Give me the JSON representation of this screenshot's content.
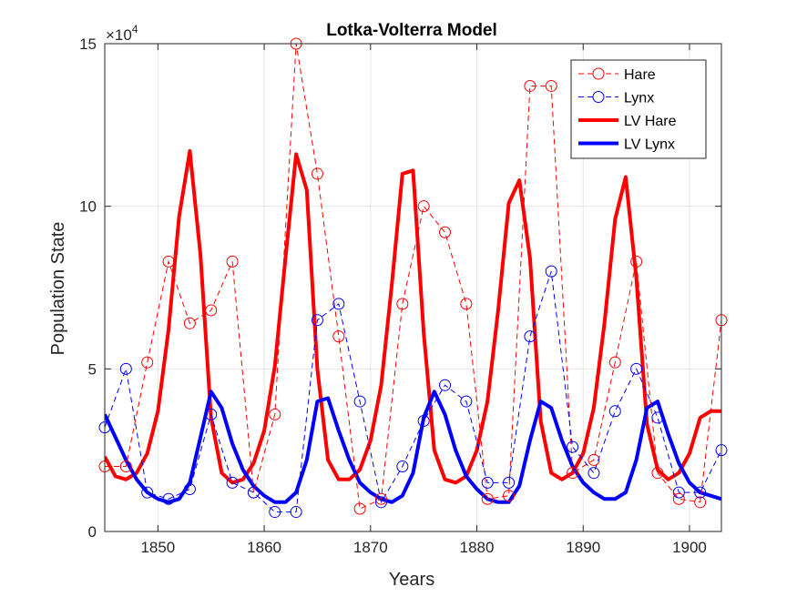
{
  "chart_data": {
    "type": "line",
    "title": "Lotka-Volterra Model",
    "xlabel": "Years",
    "ylabel": "Population State",
    "y_multiplier": "×10^4",
    "xlim": [
      1845,
      1903
    ],
    "ylim": [
      0,
      150000
    ],
    "xticks": [
      1850,
      1860,
      1870,
      1880,
      1890,
      1900
    ],
    "yticks": [
      0,
      50000,
      100000,
      150000
    ],
    "ytick_labels": [
      "0",
      "5",
      "10",
      "15"
    ],
    "grid": true,
    "legend_position": "top-right",
    "series": [
      {
        "name": "Hare",
        "color": "#ff0000",
        "style": "dashed-circle",
        "x": [
          1845,
          1847,
          1849,
          1851,
          1853,
          1855,
          1857,
          1859,
          1861,
          1863,
          1865,
          1867,
          1869,
          1871,
          1873,
          1875,
          1877,
          1879,
          1881,
          1883,
          1885,
          1887,
          1889,
          1891,
          1893,
          1895,
          1897,
          1899,
          1901,
          1903
        ],
        "y": [
          20000,
          20000,
          52000,
          83000,
          64000,
          68000,
          83000,
          12000,
          36000,
          150000,
          110000,
          60000,
          7000,
          10000,
          70000,
          100000,
          92000,
          70000,
          10000,
          11000,
          137000,
          137000,
          18000,
          22000,
          52000,
          83000,
          18000,
          10000,
          9000,
          65000
        ]
      },
      {
        "name": "Lynx",
        "color": "#0000ff",
        "style": "dashed-circle",
        "x": [
          1845,
          1847,
          1849,
          1851,
          1853,
          1855,
          1857,
          1859,
          1861,
          1863,
          1865,
          1867,
          1869,
          1871,
          1873,
          1875,
          1877,
          1879,
          1881,
          1883,
          1885,
          1887,
          1889,
          1891,
          1893,
          1895,
          1897,
          1899,
          1901,
          1903
        ],
        "y": [
          32000,
          50000,
          12000,
          10000,
          13000,
          36000,
          15000,
          12000,
          6000,
          6000,
          65000,
          70000,
          40000,
          9000,
          20000,
          34000,
          45000,
          40000,
          15000,
          15000,
          60000,
          80000,
          26000,
          18000,
          37000,
          50000,
          35000,
          12000,
          12000,
          25000
        ]
      },
      {
        "name": "LV Hare",
        "color": "#ff0000",
        "style": "solid-thick",
        "x": [
          1845,
          1846,
          1847,
          1848,
          1849,
          1850,
          1851,
          1852,
          1853,
          1854,
          1855,
          1856,
          1857,
          1858,
          1859,
          1860,
          1861,
          1862,
          1863,
          1864,
          1865,
          1866,
          1867,
          1868,
          1869,
          1870,
          1871,
          1872,
          1873,
          1874,
          1875,
          1876,
          1877,
          1878,
          1879,
          1880,
          1881,
          1882,
          1883,
          1884,
          1885,
          1886,
          1887,
          1888,
          1889,
          1890,
          1891,
          1892,
          1893,
          1894,
          1895,
          1896,
          1897,
          1898,
          1899,
          1900,
          1901,
          1902,
          1903
        ],
        "y": [
          23000,
          17000,
          16000,
          18000,
          24000,
          37000,
          62000,
          97000,
          117000,
          85000,
          35000,
          18000,
          15000,
          16000,
          21000,
          31000,
          51000,
          84000,
          116000,
          105000,
          50000,
          22000,
          16000,
          16000,
          19000,
          28000,
          45000,
          76000,
          110000,
          111000,
          61000,
          25000,
          16000,
          15000,
          17000,
          25000,
          40000,
          68000,
          101000,
          108000,
          84000,
          34000,
          18000,
          16000,
          18000,
          24000,
          38000,
          64000,
          96000,
          109000,
          78000,
          33000,
          19000,
          16000,
          18000,
          24000,
          35000,
          37000,
          37000
        ]
      },
      {
        "name": "LV Lynx",
        "color": "#0000ff",
        "style": "solid-thick",
        "x": [
          1845,
          1846,
          1847,
          1848,
          1849,
          1850,
          1851,
          1852,
          1853,
          1854,
          1855,
          1856,
          1857,
          1858,
          1859,
          1860,
          1861,
          1862,
          1863,
          1864,
          1865,
          1866,
          1867,
          1868,
          1869,
          1870,
          1871,
          1872,
          1873,
          1874,
          1875,
          1876,
          1877,
          1878,
          1879,
          1880,
          1881,
          1882,
          1883,
          1884,
          1885,
          1886,
          1887,
          1888,
          1889,
          1890,
          1891,
          1892,
          1893,
          1894,
          1895,
          1896,
          1897,
          1898,
          1899,
          1900,
          1901,
          1902,
          1903
        ],
        "y": [
          36000,
          29000,
          22000,
          16000,
          12000,
          10000,
          9000,
          10000,
          15000,
          29000,
          43000,
          38000,
          27000,
          19000,
          14000,
          11000,
          9000,
          9000,
          12000,
          22000,
          40000,
          41000,
          31000,
          22000,
          15000,
          12000,
          10000,
          9000,
          11000,
          18000,
          35000,
          43000,
          36000,
          25000,
          17000,
          13000,
          10000,
          9000,
          9000,
          14000,
          28000,
          40000,
          38000,
          28000,
          20000,
          15000,
          12000,
          10000,
          10000,
          12000,
          22000,
          38000,
          40000,
          30000,
          21000,
          15000,
          12000,
          11000,
          10000
        ]
      }
    ]
  }
}
